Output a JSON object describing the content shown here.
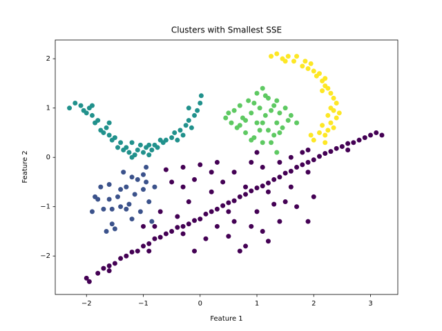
{
  "chart_data": {
    "type": "scatter",
    "title": "Clusters with Smallest SSE",
    "x_label": "Feature 1",
    "y_label": "Feature 2",
    "xlim": [
      -2.55,
      3.48
    ],
    "ylim": [
      -2.78,
      2.38
    ],
    "grid": false,
    "xticks": [
      {
        "value": -2,
        "label": "−2"
      },
      {
        "value": -1,
        "label": "−1"
      },
      0,
      1,
      2,
      3
    ],
    "yticks": [
      {
        "value": -2,
        "label": "−2"
      },
      {
        "value": -1,
        "label": "−1"
      },
      0,
      1,
      2
    ],
    "series": [
      {
        "color": "#440154",
        "x": [
          -2.0,
          -1.95,
          -1.8,
          -1.7,
          -1.6,
          -1.5,
          -1.4,
          -1.3,
          -1.2,
          -1.1,
          -1.0,
          -0.9,
          -0.8,
          -0.7,
          -0.6,
          -0.5,
          -0.4,
          -0.3,
          -0.2,
          -0.1,
          0.0,
          0.1,
          0.2,
          0.3,
          0.4,
          0.5,
          0.6,
          0.7,
          0.8,
          0.9,
          1.0,
          1.1,
          1.2,
          1.3,
          1.4,
          1.5,
          1.6,
          1.7,
          1.8,
          1.9,
          2.0,
          2.1,
          2.2,
          2.3,
          2.4,
          2.5,
          2.6,
          2.7,
          2.8,
          2.9,
          3.0,
          3.1,
          3.2,
          -1.6,
          -0.9,
          -0.3,
          0.5,
          1.2,
          1.9,
          2.6,
          -0.6,
          -0.3,
          0.0,
          0.3,
          0.4,
          -0.3,
          -0.2,
          0.2,
          0.6,
          0.8,
          1.1,
          1.4,
          1.6,
          1.8,
          1.5,
          1.7,
          1.9,
          1.4,
          1.2,
          0.8,
          0.5,
          0.3,
          0.9,
          1.0,
          0.6,
          -0.7,
          -0.4,
          -0.1,
          0.1,
          -0.1,
          0.7,
          1.1,
          1.6,
          2.0,
          0.2,
          -0.5,
          1.3,
          0.9,
          -0.8,
          -1.0,
          1.9,
          1.0
        ],
        "y": [
          -2.45,
          -2.52,
          -2.35,
          -2.25,
          -2.2,
          -2.15,
          -2.05,
          -2.0,
          -1.92,
          -1.9,
          -1.8,
          -1.75,
          -1.65,
          -1.62,
          -1.55,
          -1.5,
          -1.42,
          -1.4,
          -1.35,
          -1.28,
          -1.25,
          -1.15,
          -1.1,
          -1.05,
          -0.98,
          -0.92,
          -0.88,
          -0.8,
          -0.75,
          -0.68,
          -0.62,
          -0.58,
          -0.52,
          -0.45,
          -0.4,
          -0.32,
          -0.28,
          -0.2,
          -0.15,
          -0.1,
          -0.05,
          0.02,
          0.08,
          0.12,
          0.18,
          0.22,
          0.28,
          0.3,
          0.35,
          0.4,
          0.45,
          0.5,
          0.45,
          -2.3,
          -1.9,
          -1.55,
          -1.1,
          -0.7,
          -0.3,
          0.15,
          -0.25,
          -0.2,
          -0.15,
          -0.1,
          -0.5,
          -0.6,
          -0.9,
          -0.7,
          -0.3,
          -0.6,
          -0.2,
          -0.1,
          0.0,
          0.1,
          -0.9,
          -1.0,
          -1.3,
          -1.3,
          -1.7,
          -1.8,
          -1.6,
          -1.4,
          -1.4,
          -1.1,
          -1.3,
          -1.1,
          -1.2,
          -0.45,
          -1.65,
          -1.9,
          -1.9,
          -1.5,
          -0.6,
          -0.8,
          -0.3,
          -0.5,
          -0.95,
          -0.1,
          -1.4,
          -1.4,
          0.15,
          0.1
        ]
      },
      {
        "color": "#3b528b",
        "x": [
          -1.9,
          -1.8,
          -1.7,
          -1.75,
          -1.6,
          -1.55,
          -1.5,
          -1.45,
          -1.4,
          -1.35,
          -1.3,
          -1.25,
          -1.2,
          -1.15,
          -1.1,
          -1.05,
          -1.0,
          -0.95,
          -0.9,
          -0.85,
          -0.8,
          -1.0,
          -1.6,
          -1.65,
          -1.85,
          -1.4,
          -1.2,
          -0.95,
          -1.3,
          -1.55
        ],
        "y": [
          -1.1,
          -0.85,
          -1.05,
          -0.6,
          -0.55,
          -1.05,
          -1.45,
          -0.8,
          -1.0,
          -0.3,
          -0.6,
          -0.95,
          -1.25,
          -0.75,
          -0.45,
          -1.1,
          -0.65,
          -0.2,
          -0.9,
          -1.3,
          -0.6,
          -0.35,
          -0.85,
          -1.5,
          -0.8,
          -0.65,
          -0.4,
          -0.5,
          -1.05,
          -1.35
        ]
      },
      {
        "color": "#21918c",
        "x": [
          -2.3,
          -2.2,
          -2.1,
          -2.05,
          -2.0,
          -1.95,
          -1.9,
          -1.85,
          -1.8,
          -1.75,
          -1.7,
          -1.65,
          -1.6,
          -1.55,
          -1.5,
          -1.45,
          -1.4,
          -1.35,
          -1.3,
          -1.25,
          -1.2,
          -1.15,
          -1.1,
          -1.05,
          -1.0,
          -0.95,
          -0.9,
          -0.85,
          -0.8,
          -0.75,
          -0.7,
          -0.6,
          -0.5,
          -0.45,
          -0.4,
          -0.35,
          -0.3,
          -0.25,
          -0.2,
          -0.15,
          -0.1,
          -0.05,
          0.0,
          0.02,
          -0.2,
          -1.6,
          -1.9,
          -1.2,
          -0.9,
          -0.65
        ],
        "y": [
          1.0,
          1.1,
          1.05,
          0.95,
          0.9,
          1.0,
          0.85,
          0.7,
          0.75,
          0.55,
          0.5,
          0.6,
          0.45,
          0.35,
          0.4,
          0.2,
          0.3,
          0.15,
          0.2,
          0.1,
          0.3,
          0.05,
          0.15,
          0.25,
          0.1,
          0.2,
          0.05,
          0.15,
          0.25,
          0.2,
          0.35,
          0.35,
          0.4,
          0.5,
          0.35,
          0.55,
          0.45,
          0.65,
          0.75,
          0.6,
          0.85,
          0.95,
          1.1,
          1.25,
          1.0,
          0.7,
          1.05,
          0.0,
          0.25,
          0.3
        ]
      },
      {
        "color": "#5ec962",
        "x": [
          0.45,
          0.55,
          0.6,
          0.65,
          0.7,
          0.75,
          0.8,
          0.85,
          0.9,
          0.95,
          1.0,
          1.0,
          1.05,
          1.1,
          1.1,
          1.15,
          1.2,
          1.2,
          1.25,
          1.3,
          1.3,
          1.35,
          1.4,
          1.45,
          1.5,
          1.55,
          1.6,
          1.7,
          0.5,
          0.8,
          0.95,
          1.05,
          1.15,
          0.7,
          1.4,
          1.35,
          0.9,
          1.1,
          1.25,
          1.35
        ],
        "y": [
          0.8,
          0.7,
          0.95,
          0.6,
          1.05,
          0.8,
          0.5,
          1.15,
          0.9,
          0.4,
          1.3,
          0.7,
          1.0,
          0.3,
          1.4,
          0.85,
          0.55,
          1.2,
          0.95,
          0.45,
          1.05,
          0.7,
          0.9,
          0.6,
          1.0,
          0.75,
          0.85,
          0.7,
          0.9,
          0.75,
          1.1,
          0.55,
          1.25,
          0.65,
          0.5,
          1.15,
          0.35,
          0.7,
          0.3,
          0.1
        ]
      },
      {
        "color": "#fde725",
        "x": [
          1.25,
          1.35,
          1.45,
          1.55,
          1.65,
          1.7,
          1.8,
          1.9,
          1.95,
          2.0,
          2.05,
          2.1,
          2.15,
          2.2,
          2.25,
          2.3,
          2.35,
          2.4,
          2.35,
          2.4,
          2.3,
          2.35,
          2.25,
          2.2,
          2.1,
          2.0,
          2.15,
          2.25,
          2.3,
          2.15,
          1.85,
          1.5,
          2.45,
          2.2,
          1.95,
          2.2
        ],
        "y": [
          2.05,
          2.1,
          2.0,
          2.05,
          1.95,
          2.05,
          1.85,
          1.8,
          1.9,
          1.75,
          1.65,
          1.7,
          1.55,
          1.45,
          1.4,
          1.3,
          1.2,
          1.1,
          0.95,
          0.8,
          0.7,
          0.6,
          0.55,
          0.45,
          0.5,
          0.35,
          0.65,
          0.85,
          1.0,
          1.35,
          1.95,
          1.95,
          0.9,
          0.3,
          0.45,
          1.6
        ]
      }
    ]
  }
}
